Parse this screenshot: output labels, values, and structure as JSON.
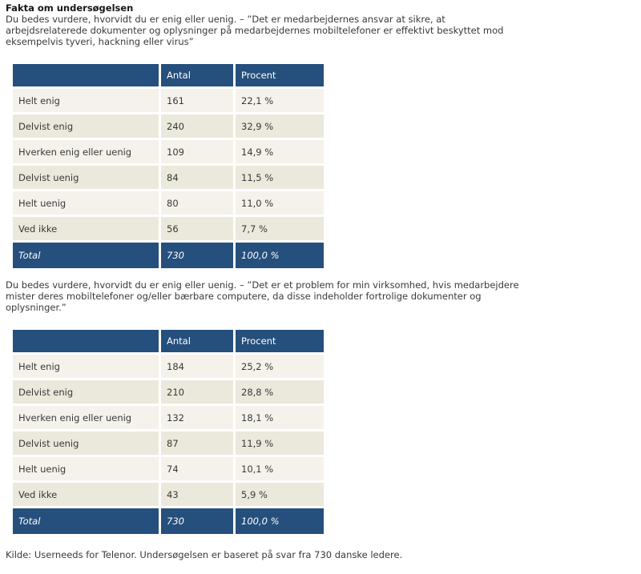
{
  "page": {
    "title": "Fakta om undersøgelsen",
    "question1": "Du bedes vurdere, hvorvidt du er enig eller uenig.  – ”Det er medarbejdernes ansvar at sikre, at arbejdsrelaterede dokumenter og oplysninger på medarbejdernes mobiltelefoner er effektivt beskyttet mod eksempelvis tyveri, hackning eller virus”",
    "question2": "Du bedes vurdere, hvorvidt du er enig eller uenig.  – ”Det er et problem for min virksomhed, hvis medarbejdere mister deres mobiltelefoner og/eller bærbare computere, da disse indeholder fortrolige dokumenter og oplysninger.”",
    "source_note": "Kilde: Userneeds for Telenor. Undersøgelsen er baseret på svar fra 730 danske ledere."
  },
  "colors": {
    "header_blue": "#254F7C",
    "row_light": "#F4F2EB",
    "row_dark": "#EBE8DC",
    "text": "#393939",
    "header_text": "#FFFFFF"
  },
  "tables": [
    {
      "headers": [
        "",
        "Antal",
        "Procent"
      ],
      "rows": [
        {
          "label": "Helt enig",
          "antal": "161",
          "procent": "22,1 %"
        },
        {
          "label": "Delvist enig",
          "antal": "240",
          "procent": "32,9 %"
        },
        {
          "label": "Hverken enig eller uenig",
          "antal": "109",
          "procent": "14,9 %"
        },
        {
          "label": "Delvist uenig",
          "antal": "84",
          "procent": "11,5 %"
        },
        {
          "label": "Helt uenig",
          "antal": "80",
          "procent": "11,0 %"
        },
        {
          "label": "Ved ikke",
          "antal": "56",
          "procent": "7,7 %"
        }
      ],
      "total": {
        "label": "Total",
        "antal": "730",
        "procent": "100,0 %"
      }
    },
    {
      "headers": [
        "",
        "Antal",
        "Procent"
      ],
      "rows": [
        {
          "label": "Helt enig",
          "antal": "184",
          "procent": "25,2 %"
        },
        {
          "label": "Delvist enig",
          "antal": "210",
          "procent": "28,8 %"
        },
        {
          "label": "Hverken enig eller uenig",
          "antal": "132",
          "procent": "18,1 %"
        },
        {
          "label": "Delvist uenig",
          "antal": "87",
          "procent": "11,9 %"
        },
        {
          "label": "Helt uenig",
          "antal": "74",
          "procent": "10,1 %"
        },
        {
          "label": "Ved ikke",
          "antal": "43",
          "procent": "5,9 %"
        }
      ],
      "total": {
        "label": "Total",
        "antal": "730",
        "procent": "100,0 %"
      }
    }
  ]
}
